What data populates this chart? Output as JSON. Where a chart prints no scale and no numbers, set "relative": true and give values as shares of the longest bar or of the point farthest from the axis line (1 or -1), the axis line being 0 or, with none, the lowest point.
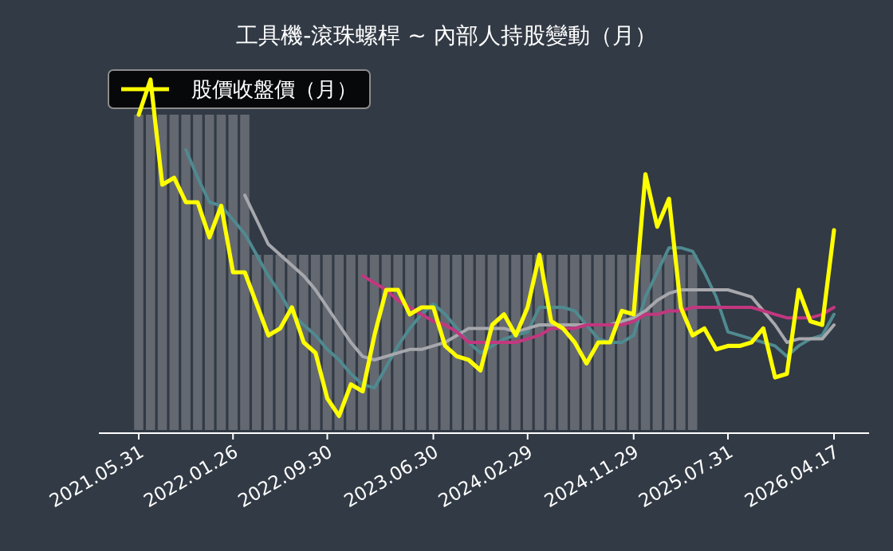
{
  "chart_data": {
    "type": "line",
    "title": "工具機-滾珠螺桿 ~ 內部人持股變動（月）",
    "relative": true,
    "legend": "top left",
    "grid": false,
    "categories": [
      "2021.05.31",
      null,
      null,
      null,
      null,
      null,
      null,
      null,
      "2022.01.26",
      null,
      null,
      null,
      null,
      null,
      null,
      null,
      "2022.09.30",
      null,
      null,
      null,
      null,
      null,
      null,
      null,
      null,
      "2023.06.30",
      null,
      null,
      null,
      null,
      null,
      null,
      null,
      "2024.02.29",
      null,
      null,
      null,
      null,
      null,
      null,
      null,
      null,
      "2024.11.29",
      null,
      null,
      null,
      null,
      null,
      null,
      null,
      "2025.07.31",
      null,
      null,
      null,
      null,
      null,
      null,
      null,
      null,
      "2026.04.17"
    ],
    "series": [
      {
        "type": "bar",
        "color": "#696e75",
        "values": [
          0.9,
          0.9,
          0.9,
          0.9,
          0.9,
          0.9,
          0.9,
          0.9,
          0.9,
          0.9,
          0.5,
          0.5,
          0.5,
          0.5,
          0.5,
          0.5,
          0.5,
          0.5,
          0.5,
          0.5,
          0.5,
          0.5,
          0.5,
          0.5,
          0.5,
          0.5,
          0.5,
          0.5,
          0.5,
          0.5,
          0.5,
          0.5,
          0.5,
          0.5,
          0.5,
          0.5,
          0.5,
          0.5,
          0.5,
          0.5,
          0.5,
          0.5,
          0.5,
          0.5,
          0.5,
          0.5,
          0.5,
          0.5,
          null,
          null,
          null,
          null,
          null,
          null,
          null,
          null,
          null,
          null,
          null,
          null
        ]
      },
      {
        "color": "#4f8a90",
        "values": [
          null,
          null,
          null,
          null,
          0.8,
          0.72,
          0.65,
          0.64,
          0.6,
          0.56,
          0.5,
          0.44,
          0.39,
          0.33,
          0.3,
          0.27,
          0.23,
          0.2,
          0.16,
          0.13,
          0.12,
          0.18,
          0.24,
          0.29,
          0.33,
          0.36,
          0.33,
          0.29,
          0.25,
          0.22,
          0.24,
          0.26,
          0.27,
          0.28,
          0.35,
          0.35,
          0.35,
          0.34,
          0.3,
          0.26,
          0.25,
          0.25,
          0.27,
          0.38,
          0.45,
          0.52,
          0.52,
          0.51,
          0.45,
          0.38,
          0.28,
          0.27,
          0.26,
          0.25,
          0.24,
          0.21,
          0.24,
          0.26,
          0.27,
          0.33
        ]
      },
      {
        "color": "#a7a8ad",
        "values": [
          null,
          null,
          null,
          null,
          null,
          null,
          null,
          null,
          null,
          0.67,
          0.6,
          0.53,
          0.5,
          0.47,
          0.44,
          0.4,
          0.35,
          0.3,
          0.25,
          0.21,
          0.2,
          0.21,
          0.22,
          0.23,
          0.23,
          0.24,
          0.25,
          0.27,
          0.29,
          0.29,
          0.29,
          0.29,
          0.28,
          0.29,
          0.3,
          0.3,
          0.3,
          0.3,
          0.3,
          0.3,
          0.3,
          0.31,
          0.32,
          0.34,
          0.37,
          0.39,
          0.4,
          0.4,
          0.4,
          0.4,
          0.4,
          0.39,
          0.38,
          0.34,
          0.3,
          0.25,
          0.26,
          0.26,
          0.26,
          0.3
        ]
      },
      {
        "color": "#c2377f",
        "values": [
          null,
          null,
          null,
          null,
          null,
          null,
          null,
          null,
          null,
          null,
          null,
          null,
          null,
          null,
          null,
          null,
          null,
          null,
          null,
          0.44,
          0.42,
          0.4,
          0.37,
          0.35,
          0.33,
          0.31,
          0.3,
          0.28,
          0.25,
          0.25,
          0.25,
          0.25,
          0.25,
          0.26,
          0.27,
          0.29,
          0.29,
          0.29,
          0.3,
          0.3,
          0.3,
          0.3,
          0.31,
          0.33,
          0.33,
          0.34,
          0.34,
          0.35,
          0.35,
          0.35,
          0.35,
          0.35,
          0.35,
          0.34,
          0.33,
          0.32,
          0.32,
          0.32,
          0.33,
          0.35
        ]
      },
      {
        "name": "股價收盤價（月）",
        "color": "#ffff00",
        "values": [
          0.9,
          1.0,
          0.7,
          0.72,
          0.65,
          0.65,
          0.55,
          0.64,
          0.45,
          0.45,
          0.36,
          0.27,
          0.29,
          0.35,
          0.25,
          0.22,
          0.09,
          0.04,
          0.13,
          0.11,
          0.27,
          0.4,
          0.4,
          0.33,
          0.35,
          0.35,
          0.24,
          0.21,
          0.2,
          0.17,
          0.3,
          0.33,
          0.27,
          0.35,
          0.5,
          0.31,
          0.29,
          0.25,
          0.19,
          0.25,
          0.25,
          0.34,
          0.33,
          0.73,
          0.58,
          0.66,
          0.35,
          0.27,
          0.29,
          0.23,
          0.24,
          0.24,
          0.25,
          0.29,
          0.15,
          0.16,
          0.4,
          0.31,
          0.3,
          0.57
        ]
      }
    ]
  }
}
